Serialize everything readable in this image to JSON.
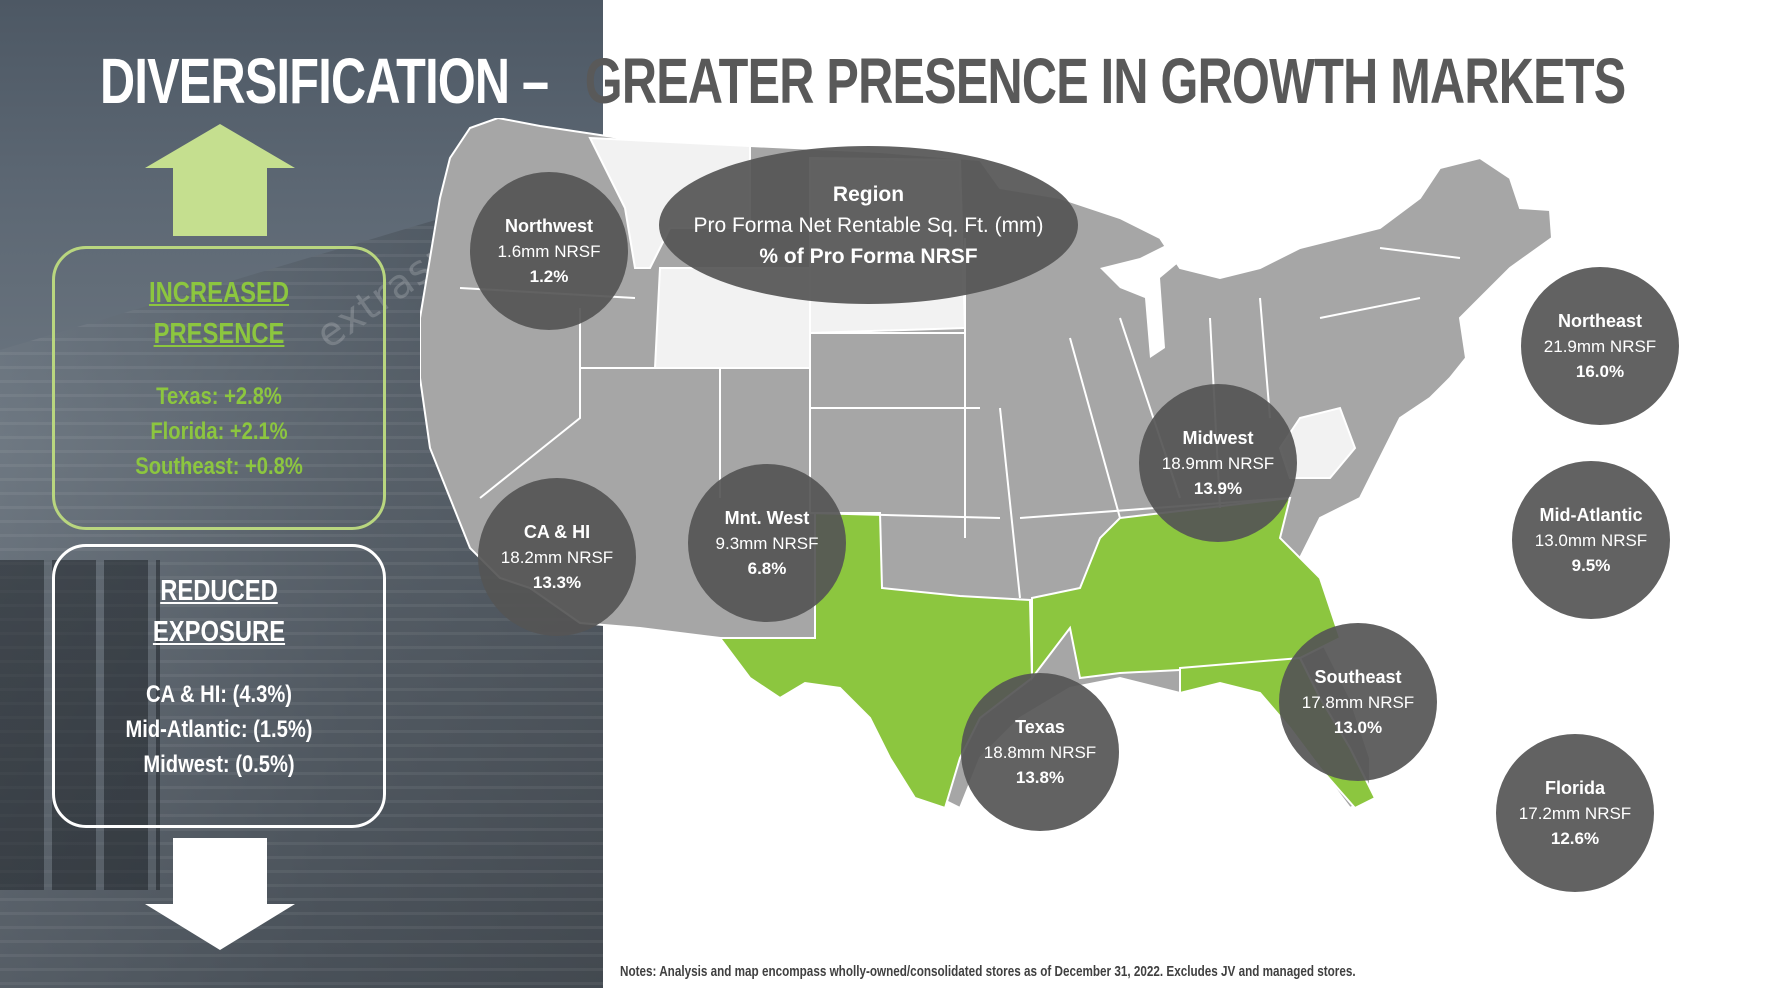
{
  "title": {
    "part1": "DIVERSIFICATION –",
    "part2": "GREATER PRESENCE IN GROWTH MARKETS"
  },
  "colors": {
    "accent_green": "#8cc63f",
    "map_gray": "#a6a6a6",
    "map_light": "#f2f2f2",
    "bubble": "#555555"
  },
  "left_panel": {
    "photo_sign_text": "extraspace",
    "increased": {
      "heading_line1": "INCREASED",
      "heading_line2": "PRESENCE",
      "items": [
        "Texas: +2.8%",
        "Florida: +2.1%",
        "Southeast: +0.8%"
      ],
      "icon": "arrow-up-icon"
    },
    "reduced": {
      "heading_line1": "REDUCED",
      "heading_line2": "EXPOSURE",
      "items": [
        "CA & HI: (4.3%)",
        "Mid-Atlantic: (1.5%)",
        "Midwest: (0.5%)"
      ],
      "icon": "arrow-down-icon"
    }
  },
  "legend": {
    "line1": "Region",
    "line2": "Pro Forma Net Rentable Sq. Ft. (mm)",
    "line3": "% of Pro Forma NRSF"
  },
  "regions": [
    {
      "name": "Northwest",
      "nrsf": "1.6mm NRSF",
      "pct": "1.2%",
      "highlight": false
    },
    {
      "name": "CA & HI",
      "nrsf": "18.2mm NRSF",
      "pct": "13.3%",
      "highlight": false
    },
    {
      "name": "Mnt. West",
      "nrsf": "9.3mm NRSF",
      "pct": "6.8%",
      "highlight": false
    },
    {
      "name": "Midwest",
      "nrsf": "18.9mm NRSF",
      "pct": "13.9%",
      "highlight": false
    },
    {
      "name": "Northeast",
      "nrsf": "21.9mm NRSF",
      "pct": "16.0%",
      "highlight": false
    },
    {
      "name": "Mid-Atlantic",
      "nrsf": "13.0mm NRSF",
      "pct": "9.5%",
      "highlight": false
    },
    {
      "name": "Texas",
      "nrsf": "18.8mm NRSF",
      "pct": "13.8%",
      "highlight": true
    },
    {
      "name": "Southeast",
      "nrsf": "17.8mm NRSF",
      "pct": "13.0%",
      "highlight": true
    },
    {
      "name": "Florida",
      "nrsf": "17.2mm NRSF",
      "pct": "12.6%",
      "highlight": true
    }
  ],
  "notes": "Notes: Analysis and map encompass wholly-owned/consolidated stores as of December 31, 2022.  Excludes JV and managed stores."
}
